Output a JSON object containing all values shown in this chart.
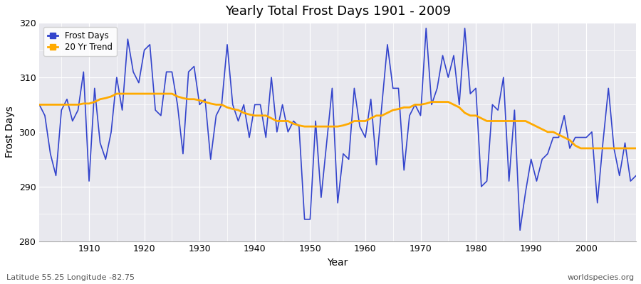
{
  "title": "Yearly Total Frost Days 1901 - 2009",
  "xlabel": "Year",
  "ylabel": "Frost Days",
  "footer_left": "Latitude 55.25 Longitude -82.75",
  "footer_right": "worldspecies.org",
  "legend_labels": [
    "Frost Days",
    "20 Yr Trend"
  ],
  "line_color": "#3344cc",
  "trend_color": "#ffaa00",
  "bg_color": "#e8e8ee",
  "fig_color": "#ffffff",
  "ylim": [
    280,
    320
  ],
  "xlim": [
    1901,
    2009
  ],
  "yticks": [
    280,
    290,
    300,
    310,
    320
  ],
  "xticks": [
    1910,
    1920,
    1930,
    1940,
    1950,
    1960,
    1970,
    1980,
    1990,
    2000
  ],
  "years": [
    1901,
    1902,
    1903,
    1904,
    1905,
    1906,
    1907,
    1908,
    1909,
    1910,
    1911,
    1912,
    1913,
    1914,
    1915,
    1916,
    1917,
    1918,
    1919,
    1920,
    1921,
    1922,
    1923,
    1924,
    1925,
    1926,
    1927,
    1928,
    1929,
    1930,
    1931,
    1932,
    1933,
    1934,
    1935,
    1936,
    1937,
    1938,
    1939,
    1940,
    1941,
    1942,
    1943,
    1944,
    1945,
    1946,
    1947,
    1948,
    1949,
    1950,
    1951,
    1952,
    1953,
    1954,
    1955,
    1956,
    1957,
    1958,
    1959,
    1960,
    1961,
    1962,
    1963,
    1964,
    1965,
    1966,
    1967,
    1968,
    1969,
    1970,
    1971,
    1972,
    1973,
    1974,
    1975,
    1976,
    1977,
    1978,
    1979,
    1980,
    1981,
    1982,
    1983,
    1984,
    1985,
    1986,
    1987,
    1988,
    1989,
    1990,
    1991,
    1992,
    1993,
    1994,
    1995,
    1996,
    1997,
    1998,
    1999,
    2000,
    2001,
    2002,
    2003,
    2004,
    2005,
    2006,
    2007,
    2008,
    2009
  ],
  "frost_days": [
    305,
    303,
    296,
    292,
    304,
    306,
    302,
    304,
    311,
    291,
    308,
    298,
    295,
    300,
    310,
    304,
    317,
    311,
    309,
    315,
    316,
    304,
    303,
    311,
    311,
    305,
    296,
    311,
    312,
    305,
    306,
    295,
    303,
    305,
    316,
    305,
    302,
    305,
    299,
    305,
    305,
    299,
    310,
    300,
    305,
    300,
    302,
    301,
    284,
    284,
    302,
    288,
    298,
    308,
    287,
    296,
    295,
    308,
    301,
    299,
    306,
    294,
    305,
    316,
    308,
    308,
    293,
    303,
    305,
    303,
    319,
    305,
    308,
    314,
    310,
    314,
    305,
    319,
    307,
    308,
    290,
    291,
    305,
    304,
    310,
    291,
    304,
    282,
    289,
    295,
    291,
    295,
    296,
    299,
    299,
    303,
    297,
    299,
    299,
    299,
    300,
    287,
    298,
    308,
    297,
    292,
    298,
    291,
    292
  ],
  "trend": [
    305.0,
    305.0,
    305.0,
    305.0,
    305.0,
    305.0,
    305.0,
    305.0,
    305.2,
    305.2,
    305.5,
    306.0,
    306.2,
    306.5,
    307.0,
    307.0,
    307.0,
    307.0,
    307.0,
    307.0,
    307.0,
    307.0,
    307.0,
    307.0,
    307.0,
    306.5,
    306.2,
    306.0,
    306.0,
    305.8,
    305.5,
    305.2,
    305.0,
    305.0,
    304.5,
    304.2,
    304.0,
    303.5,
    303.2,
    303.0,
    303.0,
    303.0,
    302.5,
    302.0,
    302.0,
    302.0,
    301.5,
    301.2,
    301.0,
    301.0,
    301.0,
    301.0,
    301.0,
    301.0,
    301.0,
    301.2,
    301.5,
    302.0,
    302.0,
    302.0,
    302.5,
    303.0,
    303.0,
    303.5,
    304.0,
    304.2,
    304.5,
    304.5,
    305.0,
    305.0,
    305.2,
    305.5,
    305.5,
    305.5,
    305.5,
    305.0,
    304.5,
    303.5,
    303.0,
    303.0,
    302.5,
    302.0,
    302.0,
    302.0,
    302.0,
    302.0,
    302.0,
    302.0,
    302.0,
    301.5,
    301.0,
    300.5,
    300.0,
    300.0,
    299.5,
    299.0,
    298.5,
    297.5,
    297.0,
    297.0,
    297.0,
    297.0,
    297.0,
    297.0,
    297.0,
    297.0,
    297.0,
    297.0,
    297.0
  ]
}
